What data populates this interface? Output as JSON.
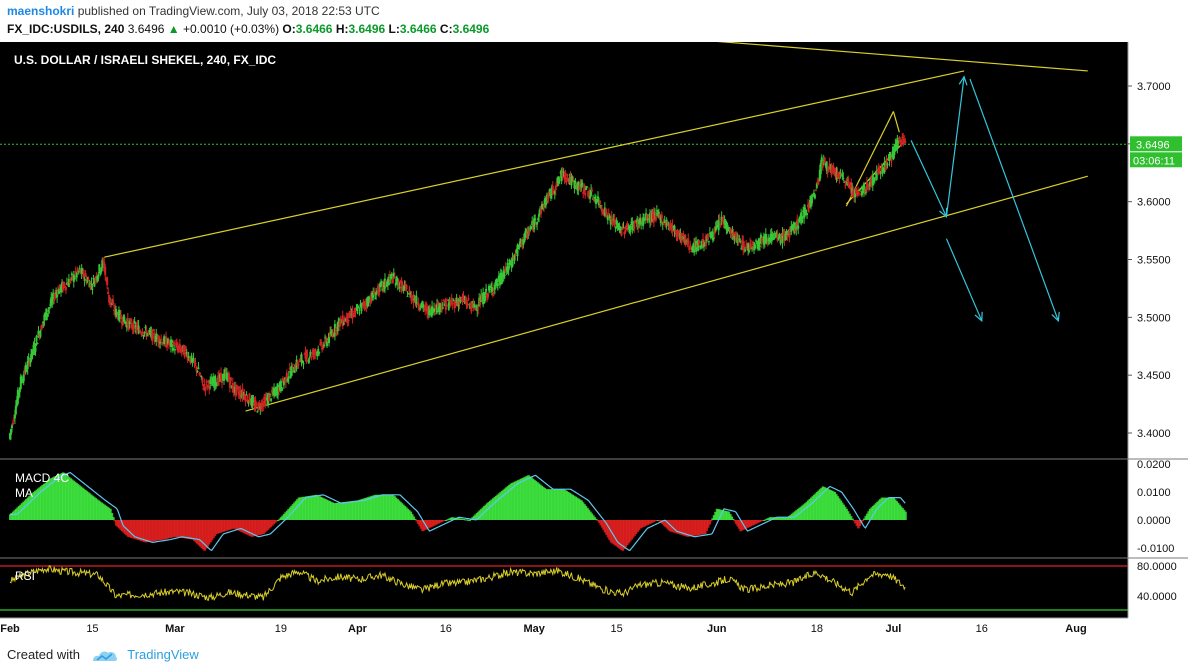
{
  "header": {
    "user": "maenshokri",
    "published": "published on TradingView.com, July 03, 2018 22:53 UTC",
    "symbol": "FX_IDC:USDILS, 240",
    "last": "3.6496",
    "change_arrow": "▲",
    "change": "+0.0010 (+0.03%)",
    "o_label": "O:",
    "o": "3.6466",
    "h_label": "H:",
    "h": "3.6496",
    "l_label": "L:",
    "l": "3.6466",
    "c_label": "C:",
    "c": "3.6496"
  },
  "footer": {
    "created_with": "Created with",
    "brand": "TradingView"
  },
  "chart_data": {
    "type": "candlestick",
    "title": "U.S. DOLLAR / ISRAELI SHEKEL, 240, FX_IDC",
    "price_labels": [
      "3.7000",
      "3.6500",
      "3.6000",
      "3.5500",
      "3.5000",
      "3.4500",
      "3.4000"
    ],
    "price_ticks": [
      3.7,
      3.65,
      3.6,
      3.55,
      3.5,
      3.45,
      3.4
    ],
    "ylim": [
      3.377,
      3.74
    ],
    "last_price_label": "3.6496",
    "last_price": 3.6496,
    "countdown_label": "03:06:11",
    "x_labels": [
      "Feb",
      "15",
      "Mar",
      "19",
      "Apr",
      "16",
      "May",
      "15",
      "Jun",
      "18",
      "Jul",
      "16",
      "Aug"
    ],
    "x_label_dates": [
      "2018-02-01",
      "2018-02-15",
      "2018-03-01",
      "2018-03-19",
      "2018-04-01",
      "2018-04-16",
      "2018-05-01",
      "2018-05-15",
      "2018-06-01",
      "2018-06-18",
      "2018-07-01",
      "2018-07-16",
      "2018-08-01"
    ],
    "price_path": [
      [
        "2018-02-01",
        3.395
      ],
      [
        "2018-02-03",
        3.445
      ],
      [
        "2018-02-05",
        3.47
      ],
      [
        "2018-02-07",
        3.5
      ],
      [
        "2018-02-09",
        3.522
      ],
      [
        "2018-02-11",
        3.53
      ],
      [
        "2018-02-13",
        3.54
      ],
      [
        "2018-02-15",
        3.528
      ],
      [
        "2018-02-17",
        3.548
      ],
      [
        "2018-02-18",
        3.515
      ],
      [
        "2018-02-19",
        3.505
      ],
      [
        "2018-02-21",
        3.495
      ],
      [
        "2018-02-23",
        3.49
      ],
      [
        "2018-02-25",
        3.485
      ],
      [
        "2018-02-27",
        3.48
      ],
      [
        "2018-03-01",
        3.475
      ],
      [
        "2018-03-03",
        3.47
      ],
      [
        "2018-03-05",
        3.455
      ],
      [
        "2018-03-06",
        3.44
      ],
      [
        "2018-03-08",
        3.445
      ],
      [
        "2018-03-10",
        3.45
      ],
      [
        "2018-03-11",
        3.438
      ],
      [
        "2018-03-13",
        3.433
      ],
      [
        "2018-03-15",
        3.422
      ],
      [
        "2018-03-17",
        3.43
      ],
      [
        "2018-03-19",
        3.44
      ],
      [
        "2018-03-21",
        3.455
      ],
      [
        "2018-03-23",
        3.465
      ],
      [
        "2018-03-25",
        3.47
      ],
      [
        "2018-03-27",
        3.48
      ],
      [
        "2018-03-29",
        3.495
      ],
      [
        "2018-04-01",
        3.505
      ],
      [
        "2018-04-03",
        3.515
      ],
      [
        "2018-04-05",
        3.525
      ],
      [
        "2018-04-07",
        3.535
      ],
      [
        "2018-04-09",
        3.525
      ],
      [
        "2018-04-11",
        3.515
      ],
      [
        "2018-04-13",
        3.505
      ],
      [
        "2018-04-15",
        3.51
      ],
      [
        "2018-04-17",
        3.512
      ],
      [
        "2018-04-19",
        3.515
      ],
      [
        "2018-04-21",
        3.508
      ],
      [
        "2018-04-23",
        3.52
      ],
      [
        "2018-04-25",
        3.53
      ],
      [
        "2018-04-27",
        3.545
      ],
      [
        "2018-04-29",
        3.565
      ],
      [
        "2018-05-01",
        3.58
      ],
      [
        "2018-05-03",
        3.6
      ],
      [
        "2018-05-05",
        3.615
      ],
      [
        "2018-05-06",
        3.625
      ],
      [
        "2018-05-08",
        3.615
      ],
      [
        "2018-05-10",
        3.61
      ],
      [
        "2018-05-12",
        3.6
      ],
      [
        "2018-05-14",
        3.585
      ],
      [
        "2018-05-16",
        3.575
      ],
      [
        "2018-05-18",
        3.58
      ],
      [
        "2018-05-20",
        3.585
      ],
      [
        "2018-05-22",
        3.588
      ],
      [
        "2018-05-24",
        3.58
      ],
      [
        "2018-05-26",
        3.57
      ],
      [
        "2018-05-28",
        3.56
      ],
      [
        "2018-05-30",
        3.565
      ],
      [
        "2018-06-01",
        3.575
      ],
      [
        "2018-06-02",
        3.585
      ],
      [
        "2018-06-04",
        3.57
      ],
      [
        "2018-06-06",
        3.56
      ],
      [
        "2018-06-08",
        3.565
      ],
      [
        "2018-06-10",
        3.57
      ],
      [
        "2018-06-12",
        3.568
      ],
      [
        "2018-06-14",
        3.575
      ],
      [
        "2018-06-16",
        3.59
      ],
      [
        "2018-06-18",
        3.61
      ],
      [
        "2018-06-19",
        3.635
      ],
      [
        "2018-06-21",
        3.625
      ],
      [
        "2018-06-23",
        3.618
      ],
      [
        "2018-06-25",
        3.605
      ],
      [
        "2018-06-27",
        3.615
      ],
      [
        "2018-06-29",
        3.628
      ],
      [
        "2018-07-01",
        3.64
      ],
      [
        "2018-07-02",
        3.655
      ],
      [
        "2018-07-03",
        3.6496
      ]
    ],
    "macd": {
      "label_line1": "MACD 4C",
      "label_line2": "MA",
      "labels": [
        "0.0200",
        "0.0100",
        "0.0000",
        "-0.0100"
      ],
      "ticks": [
        0.02,
        0.01,
        0.0,
        -0.01
      ],
      "ylim": [
        -0.0155,
        0.0205
      ],
      "histogram": [
        [
          "2018-02-01",
          0.002
        ],
        [
          "2018-02-05",
          0.01
        ],
        [
          "2018-02-08",
          0.015
        ],
        [
          "2018-02-10",
          0.017
        ],
        [
          "2018-02-13",
          0.012
        ],
        [
          "2018-02-16",
          0.007
        ],
        [
          "2018-02-18",
          0.004
        ],
        [
          "2018-02-19",
          -0.002
        ],
        [
          "2018-02-21",
          -0.006
        ],
        [
          "2018-02-24",
          -0.008
        ],
        [
          "2018-02-27",
          -0.007
        ],
        [
          "2018-03-01",
          -0.006
        ],
        [
          "2018-03-04",
          -0.007
        ],
        [
          "2018-03-06",
          -0.011
        ],
        [
          "2018-03-08",
          -0.005
        ],
        [
          "2018-03-11",
          -0.003
        ],
        [
          "2018-03-14",
          -0.006
        ],
        [
          "2018-03-16",
          -0.005
        ],
        [
          "2018-03-19",
          0.001
        ],
        [
          "2018-03-22",
          0.008
        ],
        [
          "2018-03-25",
          0.009
        ],
        [
          "2018-03-28",
          0.006
        ],
        [
          "2018-04-01",
          0.007
        ],
        [
          "2018-04-04",
          0.009
        ],
        [
          "2018-04-07",
          0.009
        ],
        [
          "2018-04-10",
          0.003
        ],
        [
          "2018-04-12",
          -0.004
        ],
        [
          "2018-04-14",
          -0.002
        ],
        [
          "2018-04-17",
          0.001
        ],
        [
          "2018-04-20",
          0.0
        ],
        [
          "2018-04-23",
          0.006
        ],
        [
          "2018-04-27",
          0.013
        ],
        [
          "2018-04-30",
          0.016
        ],
        [
          "2018-05-03",
          0.011
        ],
        [
          "2018-05-06",
          0.011
        ],
        [
          "2018-05-09",
          0.007
        ],
        [
          "2018-05-12",
          -0.001
        ],
        [
          "2018-05-14",
          -0.008
        ],
        [
          "2018-05-16",
          -0.011
        ],
        [
          "2018-05-19",
          -0.003
        ],
        [
          "2018-05-22",
          0.0
        ],
        [
          "2018-05-24",
          -0.004
        ],
        [
          "2018-05-27",
          -0.006
        ],
        [
          "2018-05-30",
          -0.005
        ],
        [
          "2018-06-01",
          0.004
        ],
        [
          "2018-06-03",
          0.003
        ],
        [
          "2018-06-05",
          -0.004
        ],
        [
          "2018-06-07",
          -0.002
        ],
        [
          "2018-06-10",
          0.001
        ],
        [
          "2018-06-13",
          0.001
        ],
        [
          "2018-06-16",
          0.006
        ],
        [
          "2018-06-19",
          0.012
        ],
        [
          "2018-06-21",
          0.01
        ],
        [
          "2018-06-23",
          0.004
        ],
        [
          "2018-06-25",
          -0.003
        ],
        [
          "2018-06-27",
          0.004
        ],
        [
          "2018-06-29",
          0.008
        ],
        [
          "2018-07-01",
          0.008
        ],
        [
          "2018-07-03",
          0.003
        ]
      ]
    },
    "rsi": {
      "label": "RSI",
      "labels": [
        "80.0000",
        "40.0000"
      ],
      "ticks": [
        80,
        40
      ],
      "upper_band": 80,
      "lower_band": 20,
      "ylim": [
        18,
        88
      ],
      "values": [
        [
          "2018-02-01",
          60
        ],
        [
          "2018-02-04",
          70
        ],
        [
          "2018-02-07",
          77
        ],
        [
          "2018-02-10",
          73
        ],
        [
          "2018-02-13",
          71
        ],
        [
          "2018-02-16",
          68
        ],
        [
          "2018-02-19",
          40
        ],
        [
          "2018-02-22",
          42
        ],
        [
          "2018-02-26",
          44
        ],
        [
          "2018-03-01",
          46
        ],
        [
          "2018-03-04",
          43
        ],
        [
          "2018-03-07",
          38
        ],
        [
          "2018-03-10",
          45
        ],
        [
          "2018-03-13",
          42
        ],
        [
          "2018-03-16",
          38
        ],
        [
          "2018-03-19",
          65
        ],
        [
          "2018-03-22",
          73
        ],
        [
          "2018-03-25",
          60
        ],
        [
          "2018-03-29",
          66
        ],
        [
          "2018-04-01",
          62
        ],
        [
          "2018-04-05",
          68
        ],
        [
          "2018-04-09",
          55
        ],
        [
          "2018-04-12",
          48
        ],
        [
          "2018-04-15",
          56
        ],
        [
          "2018-04-19",
          58
        ],
        [
          "2018-04-23",
          64
        ],
        [
          "2018-04-27",
          72
        ],
        [
          "2018-05-01",
          70
        ],
        [
          "2018-05-05",
          74
        ],
        [
          "2018-05-09",
          62
        ],
        [
          "2018-05-13",
          48
        ],
        [
          "2018-05-16",
          43
        ],
        [
          "2018-05-19",
          55
        ],
        [
          "2018-05-23",
          58
        ],
        [
          "2018-05-27",
          50
        ],
        [
          "2018-05-31",
          56
        ],
        [
          "2018-06-03",
          63
        ],
        [
          "2018-06-06",
          48
        ],
        [
          "2018-06-10",
          54
        ],
        [
          "2018-06-14",
          58
        ],
        [
          "2018-06-18",
          72
        ],
        [
          "2018-06-21",
          58
        ],
        [
          "2018-06-24",
          45
        ],
        [
          "2018-06-27",
          68
        ],
        [
          "2018-06-30",
          70
        ],
        [
          "2018-07-03",
          52
        ]
      ]
    }
  }
}
